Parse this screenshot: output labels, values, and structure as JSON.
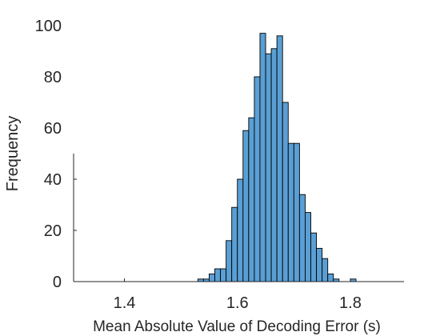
{
  "chart_data": {
    "type": "bar",
    "title": "",
    "xlabel": "Mean Absolute Value of Decoding Error (s)",
    "ylabel": "Frequency",
    "xlim": [
      1.31,
      1.895
    ],
    "ylim": [
      0,
      100
    ],
    "xticks": [
      1.4,
      1.6,
      1.8
    ],
    "xtick_labels": [
      "1.4",
      "1.6",
      "1.8"
    ],
    "yticks": [
      0,
      20,
      40,
      60,
      80,
      100
    ],
    "ytick_labels": [
      "0",
      "20",
      "40",
      "60",
      "80",
      "100"
    ],
    "grid": false,
    "legend": "none",
    "bin_width": 0.01,
    "bins": [
      {
        "x0": 1.53,
        "x1": 1.54,
        "value": 1
      },
      {
        "x0": 1.54,
        "x1": 1.55,
        "value": 1
      },
      {
        "x0": 1.55,
        "x1": 1.56,
        "value": 3
      },
      {
        "x0": 1.56,
        "x1": 1.57,
        "value": 5
      },
      {
        "x0": 1.57,
        "x1": 1.58,
        "value": 5
      },
      {
        "x0": 1.58,
        "x1": 1.59,
        "value": 16
      },
      {
        "x0": 1.59,
        "x1": 1.6,
        "value": 29
      },
      {
        "x0": 1.6,
        "x1": 1.61,
        "value": 40
      },
      {
        "x0": 1.61,
        "x1": 1.62,
        "value": 59
      },
      {
        "x0": 1.62,
        "x1": 1.63,
        "value": 64
      },
      {
        "x0": 1.63,
        "x1": 1.64,
        "value": 80
      },
      {
        "x0": 1.64,
        "x1": 1.65,
        "value": 97
      },
      {
        "x0": 1.65,
        "x1": 1.66,
        "value": 89
      },
      {
        "x0": 1.66,
        "x1": 1.67,
        "value": 91
      },
      {
        "x0": 1.67,
        "x1": 1.68,
        "value": 96
      },
      {
        "x0": 1.68,
        "x1": 1.69,
        "value": 70
      },
      {
        "x0": 1.69,
        "x1": 1.7,
        "value": 54
      },
      {
        "x0": 1.7,
        "x1": 1.71,
        "value": 54
      },
      {
        "x0": 1.71,
        "x1": 1.72,
        "value": 34
      },
      {
        "x0": 1.72,
        "x1": 1.73,
        "value": 27
      },
      {
        "x0": 1.73,
        "x1": 1.74,
        "value": 19
      },
      {
        "x0": 1.74,
        "x1": 1.75,
        "value": 13
      },
      {
        "x0": 1.75,
        "x1": 1.76,
        "value": 9
      },
      {
        "x0": 1.76,
        "x1": 1.77,
        "value": 3
      },
      {
        "x0": 1.77,
        "x1": 1.78,
        "value": 1
      },
      {
        "x0": 1.8,
        "x1": 1.81,
        "value": 1
      }
    ],
    "colors": {
      "bar_fill": "#5a9fd4",
      "bar_edge": "#000000",
      "axis": "#262626",
      "text": "#262626"
    }
  }
}
